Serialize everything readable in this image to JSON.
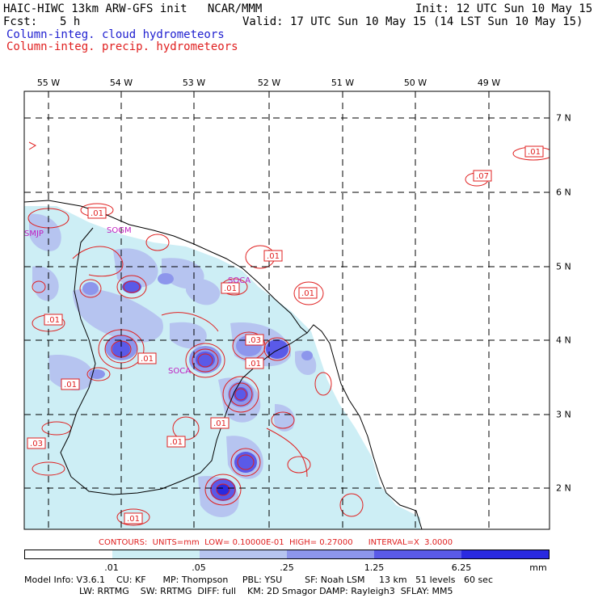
{
  "header": {
    "model": "HAIC-HIWC 13km ARW-GFS init   NCAR/MMM",
    "init": "Init: 12 UTC Sun 10 May 15",
    "fcst_label": "Fcst:",
    "fcst_value": "5 h",
    "valid": "Valid: 17 UTC Sun 10 May 15 (14 LST Sun 10 May 15)",
    "line_cloud": "Column-integ. cloud hydrometeors",
    "line_precip": "Column-integ. precip. hydrometeors"
  },
  "axes": {
    "lon_labels": [
      "55 W",
      "54 W",
      "53 W",
      "52 W",
      "51 W",
      "50 W",
      "49 W"
    ],
    "lat_labels": [
      "7 N",
      "6 N",
      "5 N",
      "4 N",
      "3 N",
      "2 N"
    ]
  },
  "stations": [
    "SMJP",
    "SOGM",
    "SOCA",
    "SOCA"
  ],
  "contour_labels": [
    ".01",
    ".01",
    ".07",
    ".01",
    ".01",
    ".01",
    ".01",
    ".03",
    ".01",
    ".01",
    ".01",
    ".01",
    ".01",
    ".01",
    ".03",
    ".01"
  ],
  "contours_info": "CONTOURS:  UNITS=mm  LOW= 0.10000E-01  HIGH= 0.27000      INTERVAL=X  3.0000",
  "legend": {
    "ticks": [
      ".01",
      ".05",
      ".25",
      "1.25",
      "6.25"
    ],
    "units": "mm",
    "colors": [
      "#ffffff",
      "#cdeef5",
      "#b6c4f0",
      "#8d96ec",
      "#5a5ae8",
      "#2a2ae0"
    ]
  },
  "model_info": {
    "line1": "Model Info: V3.6.1    CU: KF      MP: Thompson     PBL: YSU        SF: Noah LSM     13 km   51 levels   60 sec",
    "line2": "LW: RRTMG    SW: RRTMG  DIFF: full    KM: 2D Smagor DAMP: Rayleigh3  SFLAY: MM5"
  },
  "colors": {
    "cloud_text": "#2020d0",
    "precip_text": "#e02020",
    "station_text": "#c020c0"
  }
}
